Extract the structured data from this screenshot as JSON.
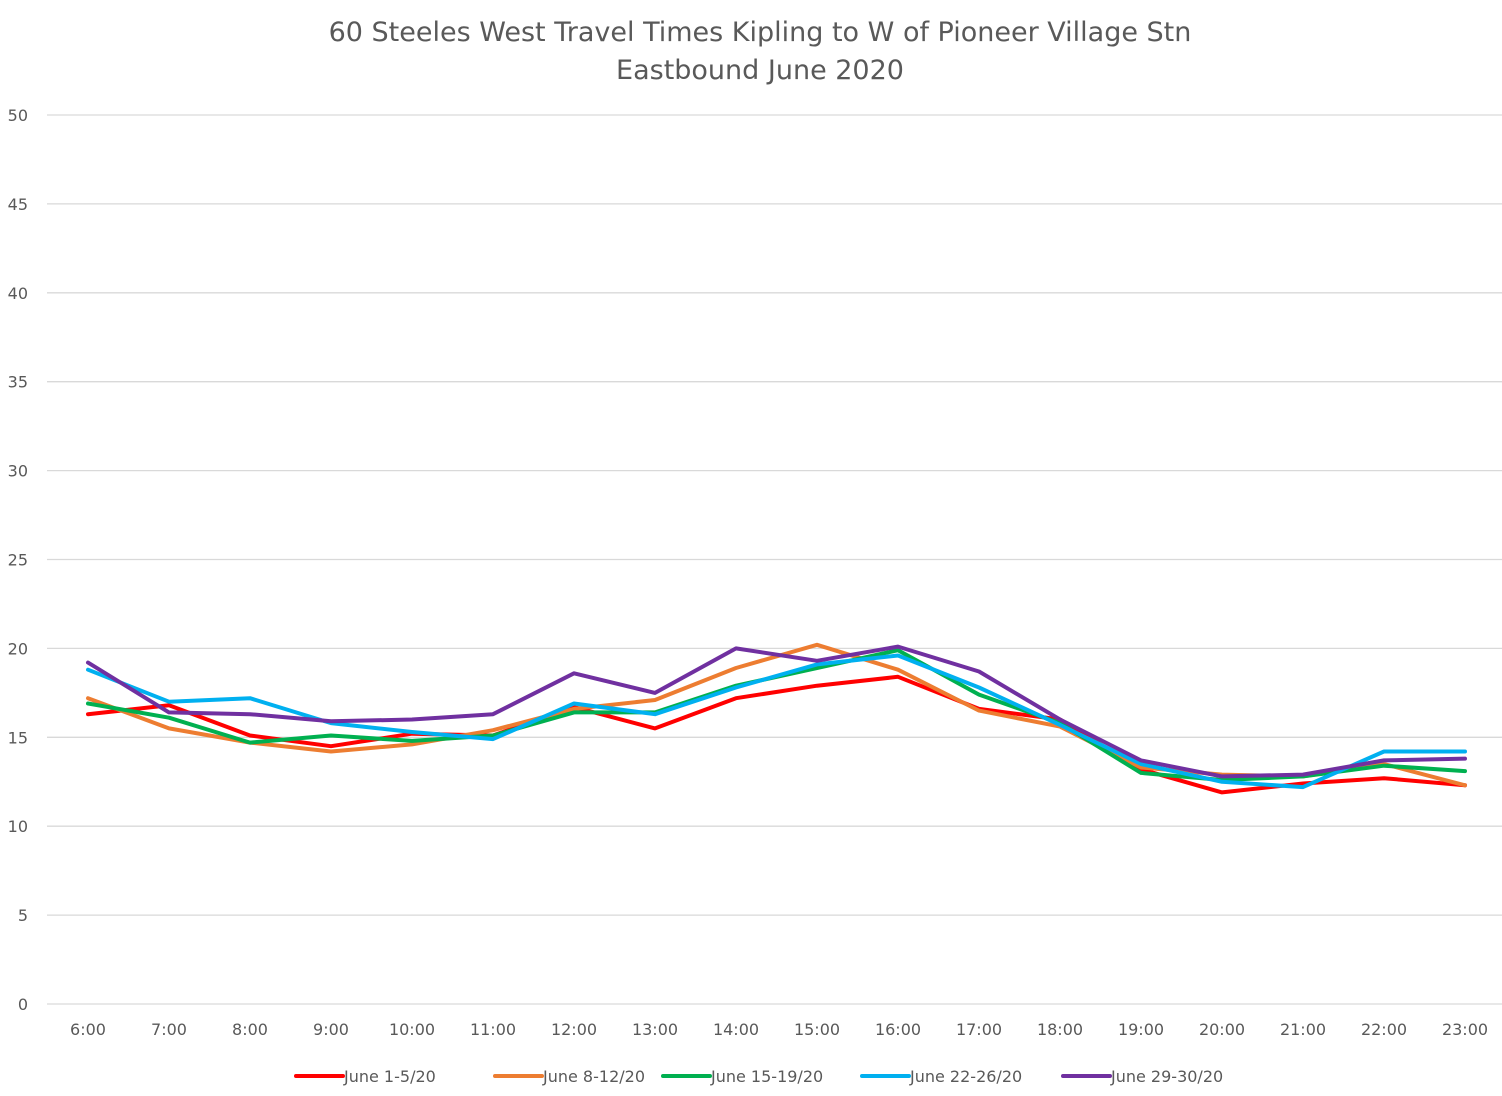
{
  "chart_data": {
    "type": "line",
    "title": "60 Steeles West Travel Times Kipling to W of Pioneer Village Stn",
    "subtitle": "Eastbound  June 2020",
    "xlabel": "",
    "ylabel": "",
    "ylim": [
      0,
      50
    ],
    "yticks": [
      0,
      5,
      10,
      15,
      20,
      25,
      30,
      35,
      40,
      45,
      50
    ],
    "grid": true,
    "legend_position": "bottom",
    "categories": [
      "6:00",
      "7:00",
      "8:00",
      "9:00",
      "10:00",
      "11:00",
      "12:00",
      "13:00",
      "14:00",
      "15:00",
      "16:00",
      "17:00",
      "18:00",
      "19:00",
      "20:00",
      "21:00",
      "22:00",
      "23:00"
    ],
    "series": [
      {
        "name": "June 1-5/20",
        "color": "#ff0000",
        "values": [
          16.3,
          16.8,
          15.1,
          14.5,
          15.2,
          15.1,
          16.7,
          15.5,
          17.2,
          17.9,
          18.4,
          16.6,
          16.0,
          13.2,
          11.9,
          12.4,
          12.7,
          12.3
        ]
      },
      {
        "name": "June 8-12/20",
        "color": "#ed7d31",
        "values": [
          17.2,
          15.5,
          14.7,
          14.2,
          14.6,
          15.4,
          16.6,
          17.1,
          18.9,
          20.2,
          18.8,
          16.5,
          15.6,
          13.3,
          12.9,
          12.8,
          13.5,
          12.3
        ]
      },
      {
        "name": "June 15-19/20",
        "color": "#00b050",
        "values": [
          16.9,
          16.1,
          14.7,
          15.1,
          14.8,
          15.1,
          16.4,
          16.4,
          17.9,
          18.9,
          19.9,
          17.4,
          15.8,
          13.0,
          12.6,
          12.8,
          13.4,
          13.1
        ]
      },
      {
        "name": "June 22-26/20",
        "color": "#00b0f0",
        "values": [
          18.8,
          17.0,
          17.2,
          15.8,
          15.3,
          14.9,
          16.9,
          16.3,
          17.8,
          19.1,
          19.6,
          17.8,
          15.7,
          13.5,
          12.5,
          12.2,
          14.2,
          14.2
        ]
      },
      {
        "name": "June 29-30/20",
        "color": "#7030a0",
        "values": [
          19.2,
          16.4,
          16.3,
          15.9,
          16.0,
          16.3,
          18.6,
          17.5,
          20.0,
          19.3,
          20.1,
          18.7,
          16.0,
          13.7,
          12.8,
          12.9,
          13.7,
          13.8
        ]
      }
    ]
  }
}
